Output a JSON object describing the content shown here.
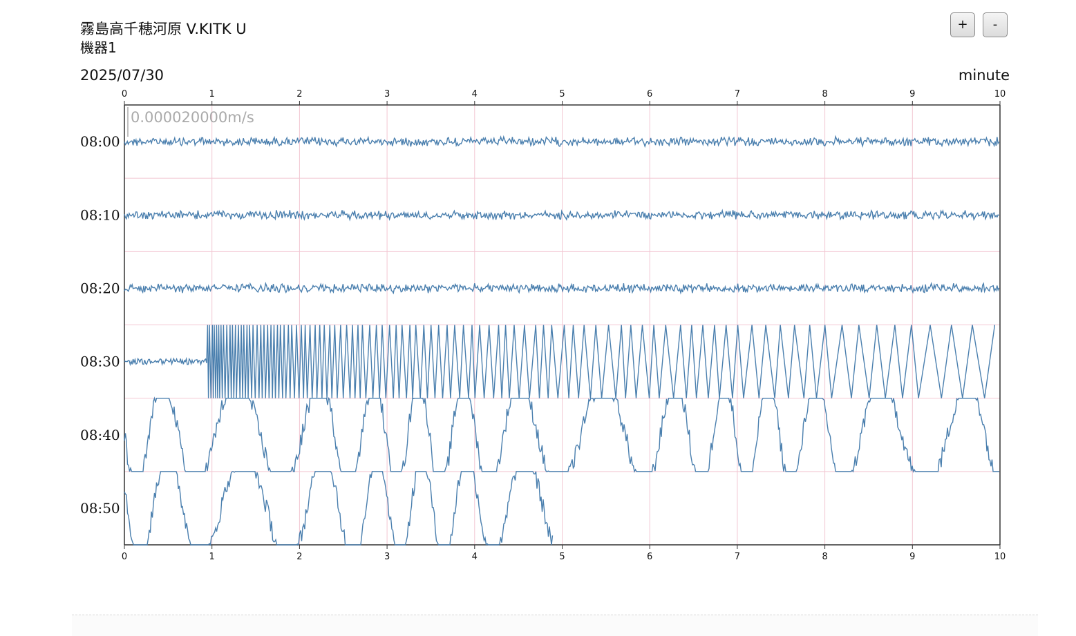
{
  "header": {
    "station": "霧島高千穂河原 V.KITK U",
    "device": "機器1",
    "date": "2025/07/30",
    "x_unit": "minute"
  },
  "controls": {
    "zoom_in_label": "+",
    "zoom_out_label": "-"
  },
  "chart_data": {
    "type": "line",
    "scale_label": "0.000020000m/s",
    "xlim": [
      0,
      10
    ],
    "x_ticks": [
      "0",
      "1",
      "2",
      "3",
      "4",
      "5",
      "6",
      "7",
      "8",
      "9",
      "10"
    ],
    "row_labels": [
      "08:00",
      "08:10",
      "08:20",
      "08:30",
      "08:40",
      "08:50"
    ],
    "rows": [
      {
        "label": "08:00",
        "start": 0,
        "end": 10,
        "pattern": "noise",
        "amplitude": 0.08
      },
      {
        "label": "08:10",
        "start": 0,
        "end": 10,
        "pattern": "noise",
        "amplitude": 0.08
      },
      {
        "label": "08:20",
        "start": 0,
        "end": 10,
        "pattern": "noise",
        "amplitude": 0.08
      },
      {
        "label": "08:30",
        "start": 0,
        "end": 10,
        "pattern": "burst",
        "burst_start": 0.95,
        "amplitude": 0.08
      },
      {
        "label": "08:40",
        "start": 0,
        "end": 10,
        "pattern": "swell",
        "amplitude": 1.0
      },
      {
        "label": "08:50",
        "start": 0,
        "end": 4.9,
        "pattern": "swell",
        "amplitude": 1.0
      }
    ],
    "colors": {
      "trace": "#4a7fae",
      "grid": "#f2c6d2",
      "axis": "#333333",
      "scale_bar": "#aaaaaa"
    },
    "grid": true
  }
}
